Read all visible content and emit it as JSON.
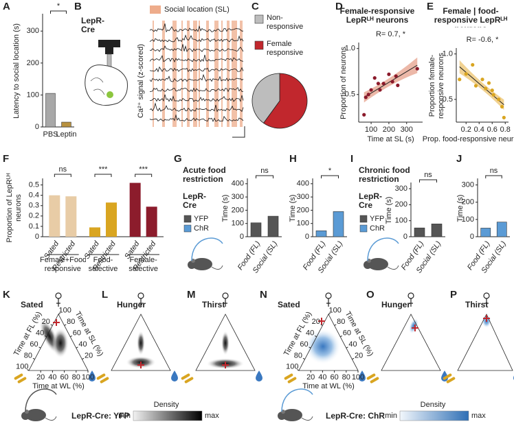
{
  "chart_data": [
    {
      "type": "bar",
      "panel": "A",
      "ylabel": "Latency to social location (s)",
      "categories": [
        "PBS",
        "Leptin"
      ],
      "values": [
        105,
        15
      ],
      "colors": [
        "#a8a8a8",
        "#b8913f"
      ],
      "ylim": [
        0,
        350
      ],
      "yticks": [
        0,
        100,
        200,
        300
      ],
      "annotations": [
        "*"
      ]
    },
    {
      "type": "pie",
      "panel": "C",
      "categories": [
        "Non-responsive",
        "Female responsive"
      ],
      "values": [
        40,
        60
      ],
      "colors": [
        "#bdbdbd",
        "#c1272d"
      ]
    },
    {
      "type": "scatter",
      "panel": "D",
      "title": "Female-responsive LepRᴸᴴ neurons",
      "annotation": "R= 0.7, *",
      "xlabel": "Time at SL (s)",
      "ylabel": "Proportion of neurons",
      "x": [
        60,
        70,
        85,
        100,
        120,
        140,
        150,
        170,
        200,
        220,
        240,
        250,
        360
      ],
      "values": [
        0.28,
        0.47,
        0.5,
        0.55,
        0.68,
        0.62,
        0.55,
        0.62,
        0.72,
        0.64,
        0.7,
        0.6,
        0.78
      ],
      "color": "#8b1a2b",
      "band_color": "#e0886e",
      "xlim": [
        30,
        390
      ],
      "ylim": [
        0.2,
        1.05
      ],
      "xticks": [
        100,
        200,
        300
      ],
      "yticks": [
        0.5,
        {
          "value": 1,
          "label": "1.0"
        }
      ]
    },
    {
      "type": "scatter",
      "panel": "E",
      "title": "Female | food-responsive LepRᴸᴴ neurons",
      "annotation": "R= -0.6, *",
      "xlabel": "Prop. food-responsive neurons",
      "ylabel": "Proportion female-responsive neurons",
      "x": [
        0.1,
        0.2,
        0.3,
        0.35,
        0.45,
        0.5,
        0.55,
        0.6,
        0.62,
        0.7,
        0.75,
        0.78
      ],
      "values": [
        0.72,
        0.78,
        0.88,
        0.65,
        0.72,
        0.62,
        0.68,
        0.6,
        0.55,
        0.5,
        0.42,
        0.3
      ],
      "color": "#d9a521",
      "band_color": "#e8b44a",
      "xlim": [
        0.05,
        0.85
      ],
      "ylim": [
        0.25,
        1.05
      ],
      "xticks": [
        0.2,
        0.4,
        0.6,
        0.8
      ],
      "yticks": [
        0.5,
        {
          "value": 1,
          "label": "1.0"
        }
      ]
    },
    {
      "type": "grouped_bar",
      "panel": "F",
      "ylabel": "Proportion of LepRᴸᴴ neurons",
      "groups": [
        "Female+Food-responsive",
        "Food-selective",
        "Female-selective"
      ],
      "colors": [
        "#e8cca6",
        "#d9a521",
        "#8c1c2c"
      ],
      "series": [
        {
          "name": "Sated",
          "values": [
            0.4,
            0.09,
            0.52
          ]
        },
        {
          "name": "Restricted",
          "values": [
            0.39,
            0.33,
            0.29
          ]
        }
      ],
      "ylim": [
        0,
        0.55
      ],
      "yticks": [
        0,
        0.1,
        0.2,
        0.3,
        0.4,
        0.5
      ],
      "annotations": [
        "ns",
        "***",
        "***"
      ]
    },
    {
      "type": "bar",
      "panel": "G",
      "ylabel": "Time (s)",
      "categories": [
        "Food (FL)",
        "Social (SL)"
      ],
      "series": [
        {
          "name": "YFP",
          "color": "#555555",
          "values": [
            105,
            155
          ]
        }
      ],
      "ylim": [
        0,
        430
      ],
      "yticks": [
        0,
        100,
        200,
        300,
        400
      ],
      "annotations": [
        "ns"
      ]
    },
    {
      "type": "bar",
      "panel": "H",
      "ylabel": "Time (s)",
      "categories": [
        "Food (FL)",
        "Social (SL)"
      ],
      "series": [
        {
          "name": "ChR",
          "color": "#5b9bd5",
          "values": [
            45,
            190
          ]
        }
      ],
      "ylim": [
        0,
        430
      ],
      "yticks": [
        0,
        100,
        200,
        300,
        400
      ],
      "annotations": [
        "*"
      ]
    },
    {
      "type": "bar",
      "panel": "I",
      "ylabel": "Time (s)",
      "categories": [
        "Food (FL)",
        "Social (SL)"
      ],
      "series": [
        {
          "name": "YFP",
          "color": "#555555",
          "values": [
            55,
            80
          ]
        }
      ],
      "ylim": [
        0,
        330
      ],
      "yticks": [
        0,
        100,
        200,
        300
      ],
      "annotations": [
        "ns"
      ]
    },
    {
      "type": "bar",
      "panel": "J",
      "ylabel": "Time (s)",
      "categories": [
        "Food (FL)",
        "Social (SL)"
      ],
      "series": [
        {
          "name": "ChR",
          "color": "#5b9bd5",
          "values": [
            50,
            85
          ]
        }
      ],
      "ylim": [
        0,
        330
      ],
      "yticks": [
        0,
        100,
        200,
        300
      ],
      "annotations": [
        "ns"
      ]
    }
  ],
  "panel_b": {
    "panel": "B",
    "title": "LepR-Cre",
    "legend": "Social location (SL)",
    "ylabel": "Ca²⁺ signal (z-scored)"
  },
  "panel_g_text": {
    "title": "Acute food restriction",
    "line": "LepR-Cre"
  },
  "panel_i_text": {
    "title": "Chronic food restriction",
    "line": "LepR-Cre"
  },
  "ternary": {
    "panels": [
      {
        "panel": "K",
        "title": "Sated"
      },
      {
        "panel": "L",
        "title": "Hunger"
      },
      {
        "panel": "M",
        "title": "Thirst"
      },
      {
        "panel": "N",
        "title": "Sated"
      },
      {
        "panel": "O",
        "title": "Hunger"
      },
      {
        "panel": "P",
        "title": "Thirst"
      }
    ],
    "axis_labels": [
      "Time at FL (%)",
      "Time at SL (%)",
      "Time at WL (%)"
    ],
    "ticks": [
      20,
      40,
      60,
      80,
      100
    ],
    "legends": [
      {
        "name": "LepR-Cre: YFP",
        "title": "Density",
        "min": "min",
        "max": "max"
      },
      {
        "name": "LepR-Cre: ChR",
        "title": "Density",
        "min": "min",
        "max": "max"
      }
    ]
  }
}
